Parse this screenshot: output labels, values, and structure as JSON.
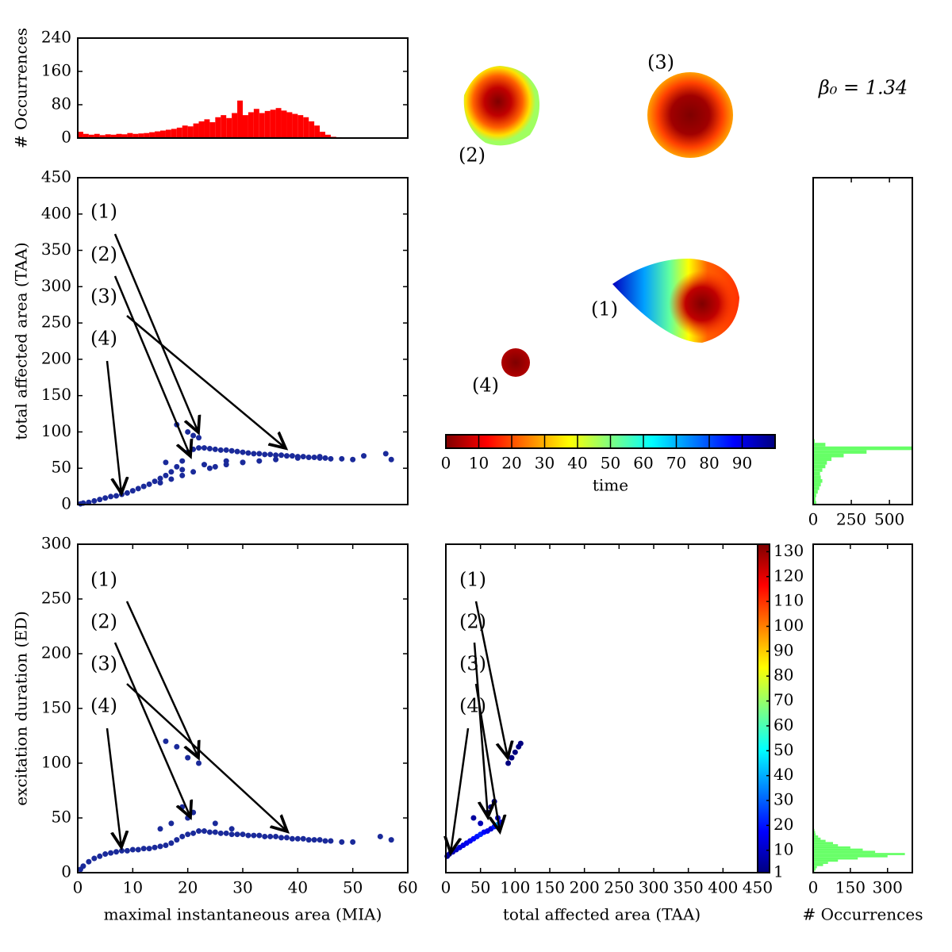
{
  "chart_data": [
    {
      "type": "histogram",
      "orientation": "vertical",
      "ylabel": "# Occurrences",
      "color": "#ff0000",
      "bins": [
        0,
        1,
        2,
        3,
        4,
        5,
        6,
        7,
        8,
        9,
        10,
        11,
        12,
        13,
        14,
        15,
        16,
        17,
        18,
        19,
        20,
        21,
        22,
        23,
        24,
        25,
        26,
        27,
        28,
        29,
        30,
        31,
        32,
        33,
        34,
        35,
        36,
        37,
        38,
        39,
        40,
        41,
        42,
        43,
        44,
        45,
        46,
        47,
        48,
        49,
        50,
        51,
        52,
        53,
        54,
        55,
        56,
        57,
        58,
        59,
        60
      ],
      "counts": [
        15,
        10,
        8,
        10,
        7,
        9,
        8,
        10,
        9,
        12,
        10,
        11,
        12,
        14,
        16,
        18,
        20,
        22,
        25,
        30,
        28,
        35,
        40,
        45,
        38,
        50,
        55,
        48,
        60,
        90,
        55,
        62,
        70,
        60,
        65,
        68,
        72,
        66,
        62,
        58,
        55,
        50,
        40,
        30,
        15,
        8,
        3,
        2,
        1,
        1,
        0,
        0,
        0,
        0,
        0,
        0,
        0,
        0,
        0,
        0
      ],
      "xlim": [
        0,
        60
      ],
      "ylim": [
        0,
        240
      ],
      "yticks": [
        0,
        80,
        160,
        240
      ]
    },
    {
      "type": "scatter",
      "ylabel": "total affected area (TAA)",
      "color": "#1a2a9a",
      "annotations": [
        "(1)",
        "(2)",
        "(3)",
        "(4)"
      ],
      "x": [
        0.5,
        1,
        2,
        3,
        4,
        5,
        6,
        7,
        8,
        9,
        10,
        11,
        12,
        13,
        14,
        15,
        16,
        17,
        18,
        19,
        20,
        21,
        22,
        23,
        24,
        25,
        26,
        27,
        28,
        29,
        30,
        31,
        32,
        33,
        34,
        35,
        36,
        37,
        38,
        39,
        40,
        41,
        42,
        43,
        44,
        45,
        46,
        48,
        50,
        52,
        56,
        57,
        18,
        20,
        21,
        22,
        16,
        19,
        23,
        25,
        27,
        30,
        15,
        17,
        19,
        21,
        24,
        27,
        30,
        33,
        36,
        40,
        44
      ],
      "y": [
        1,
        2,
        3,
        5,
        7,
        9,
        11,
        12,
        14,
        16,
        19,
        22,
        25,
        28,
        32,
        36,
        40,
        45,
        52,
        60,
        72,
        76,
        78,
        78,
        77,
        76,
        75,
        75,
        74,
        73,
        72,
        71,
        70,
        70,
        69,
        69,
        68,
        68,
        67,
        67,
        66,
        66,
        65,
        65,
        64,
        64,
        63,
        63,
        62,
        67,
        70,
        62,
        110,
        100,
        95,
        92,
        58,
        48,
        55,
        52,
        60,
        58,
        30,
        35,
        40,
        45,
        50,
        55,
        58,
        60,
        62,
        64,
        66
      ],
      "xlim": [
        0,
        60
      ],
      "ylim": [
        0,
        450
      ],
      "yticks": [
        0,
        50,
        100,
        150,
        200,
        250,
        300,
        350,
        400,
        450
      ]
    },
    {
      "type": "scatter",
      "xlabel": "maximal instantaneous area (MIA)",
      "ylabel": "excitation duration (ED)",
      "color": "#1a2a9a",
      "annotations": [
        "(1)",
        "(2)",
        "(3)",
        "(4)"
      ],
      "x": [
        0.5,
        1,
        2,
        3,
        4,
        5,
        6,
        7,
        8,
        9,
        10,
        11,
        12,
        13,
        14,
        15,
        16,
        17,
        18,
        19,
        20,
        21,
        22,
        23,
        24,
        25,
        26,
        27,
        28,
        29,
        30,
        31,
        32,
        33,
        34,
        35,
        36,
        37,
        38,
        39,
        40,
        41,
        42,
        43,
        44,
        45,
        46,
        48,
        50,
        55,
        57,
        16,
        18,
        20,
        22,
        19,
        21,
        15,
        17,
        20,
        25,
        28
      ],
      "y": [
        3,
        6,
        10,
        13,
        15,
        17,
        18,
        19,
        20,
        20,
        21,
        21,
        22,
        22,
        23,
        24,
        25,
        27,
        30,
        33,
        35,
        36,
        38,
        38,
        37,
        37,
        36,
        36,
        35,
        35,
        35,
        34,
        34,
        34,
        33,
        33,
        33,
        32,
        32,
        31,
        31,
        31,
        30,
        30,
        30,
        29,
        29,
        28,
        28,
        33,
        30,
        120,
        115,
        105,
        100,
        60,
        55,
        40,
        45,
        50,
        45,
        40
      ],
      "xlim": [
        0,
        60
      ],
      "ylim": [
        0,
        300
      ],
      "xticks": [
        0,
        10,
        20,
        30,
        40,
        50,
        60
      ],
      "yticks": [
        0,
        50,
        100,
        150,
        200,
        250,
        300
      ]
    },
    {
      "type": "scatter",
      "xlabel": "total affected area (TAA)",
      "colormap": "jet",
      "annotations": [
        "(1)",
        "(2)",
        "(3)",
        "(4)"
      ],
      "x": [
        2,
        5,
        10,
        15,
        20,
        25,
        30,
        35,
        40,
        45,
        50,
        55,
        60,
        65,
        70,
        75,
        78,
        80,
        60,
        65,
        70,
        75,
        90,
        95,
        100,
        105,
        108,
        40,
        50
      ],
      "y": [
        15,
        17,
        19,
        21,
        23,
        25,
        27,
        29,
        31,
        33,
        35,
        37,
        38,
        40,
        42,
        44,
        45,
        46,
        55,
        60,
        65,
        50,
        100,
        105,
        110,
        115,
        118,
        50,
        45
      ],
      "c": [
        3,
        5,
        8,
        10,
        12,
        14,
        15,
        16,
        18,
        20,
        22,
        18,
        15,
        12,
        20,
        40,
        30,
        15,
        3,
        2,
        2,
        10,
        1,
        1,
        1,
        1,
        1,
        5,
        8
      ],
      "xlim": [
        0,
        450
      ],
      "ylim": [
        0,
        300
      ],
      "xticks": [
        0,
        50,
        100,
        150,
        200,
        250,
        300,
        350,
        400,
        450
      ],
      "clim": [
        1,
        133
      ],
      "cticks": [
        1,
        10,
        20,
        30,
        40,
        50,
        60,
        70,
        80,
        90,
        100,
        110,
        120,
        130
      ]
    },
    {
      "type": "histogram",
      "orientation": "horizontal",
      "color": "#66ff66",
      "bins": [
        0,
        5,
        10,
        15,
        20,
        25,
        30,
        35,
        40,
        45,
        50,
        55,
        60,
        65,
        70,
        75,
        80,
        85,
        90
      ],
      "counts": [
        20,
        15,
        20,
        30,
        40,
        50,
        60,
        50,
        45,
        60,
        80,
        90,
        120,
        200,
        350,
        650,
        80,
        10
      ],
      "xlim": [
        0,
        650
      ],
      "ylim": [
        0,
        450
      ],
      "xticks": [
        0,
        250,
        500
      ]
    },
    {
      "type": "histogram",
      "orientation": "horizontal",
      "color": "#66ff66",
      "xlabel": "# Occurrences",
      "bins": [
        0,
        2,
        4,
        6,
        8,
        10,
        12,
        14,
        16,
        18,
        20,
        22,
        24,
        26,
        28,
        30,
        32,
        34,
        36,
        38,
        40,
        42,
        44,
        46,
        48,
        50,
        52,
        54,
        56,
        58,
        60
      ],
      "counts": [
        5,
        10,
        15,
        40,
        60,
        100,
        180,
        300,
        370,
        250,
        200,
        150,
        100,
        80,
        50,
        30,
        20,
        10,
        8,
        5,
        3,
        2,
        2,
        1,
        1,
        1,
        0,
        0,
        0,
        0
      ],
      "xlim": [
        0,
        400
      ],
      "ylim": [
        0,
        300
      ],
      "xticks": [
        0,
        150,
        300
      ]
    },
    {
      "type": "colorbar",
      "orientation": "horizontal",
      "colormap": "jet_r",
      "label": "time",
      "clim": [
        0,
        100
      ],
      "ticks": [
        0,
        10,
        20,
        30,
        40,
        50,
        60,
        70,
        80,
        90
      ]
    }
  ],
  "figure": {
    "parameter": "β₀ = 1.34",
    "snapshot_labels": [
      "(1)",
      "(2)",
      "(3)",
      "(4)"
    ]
  }
}
